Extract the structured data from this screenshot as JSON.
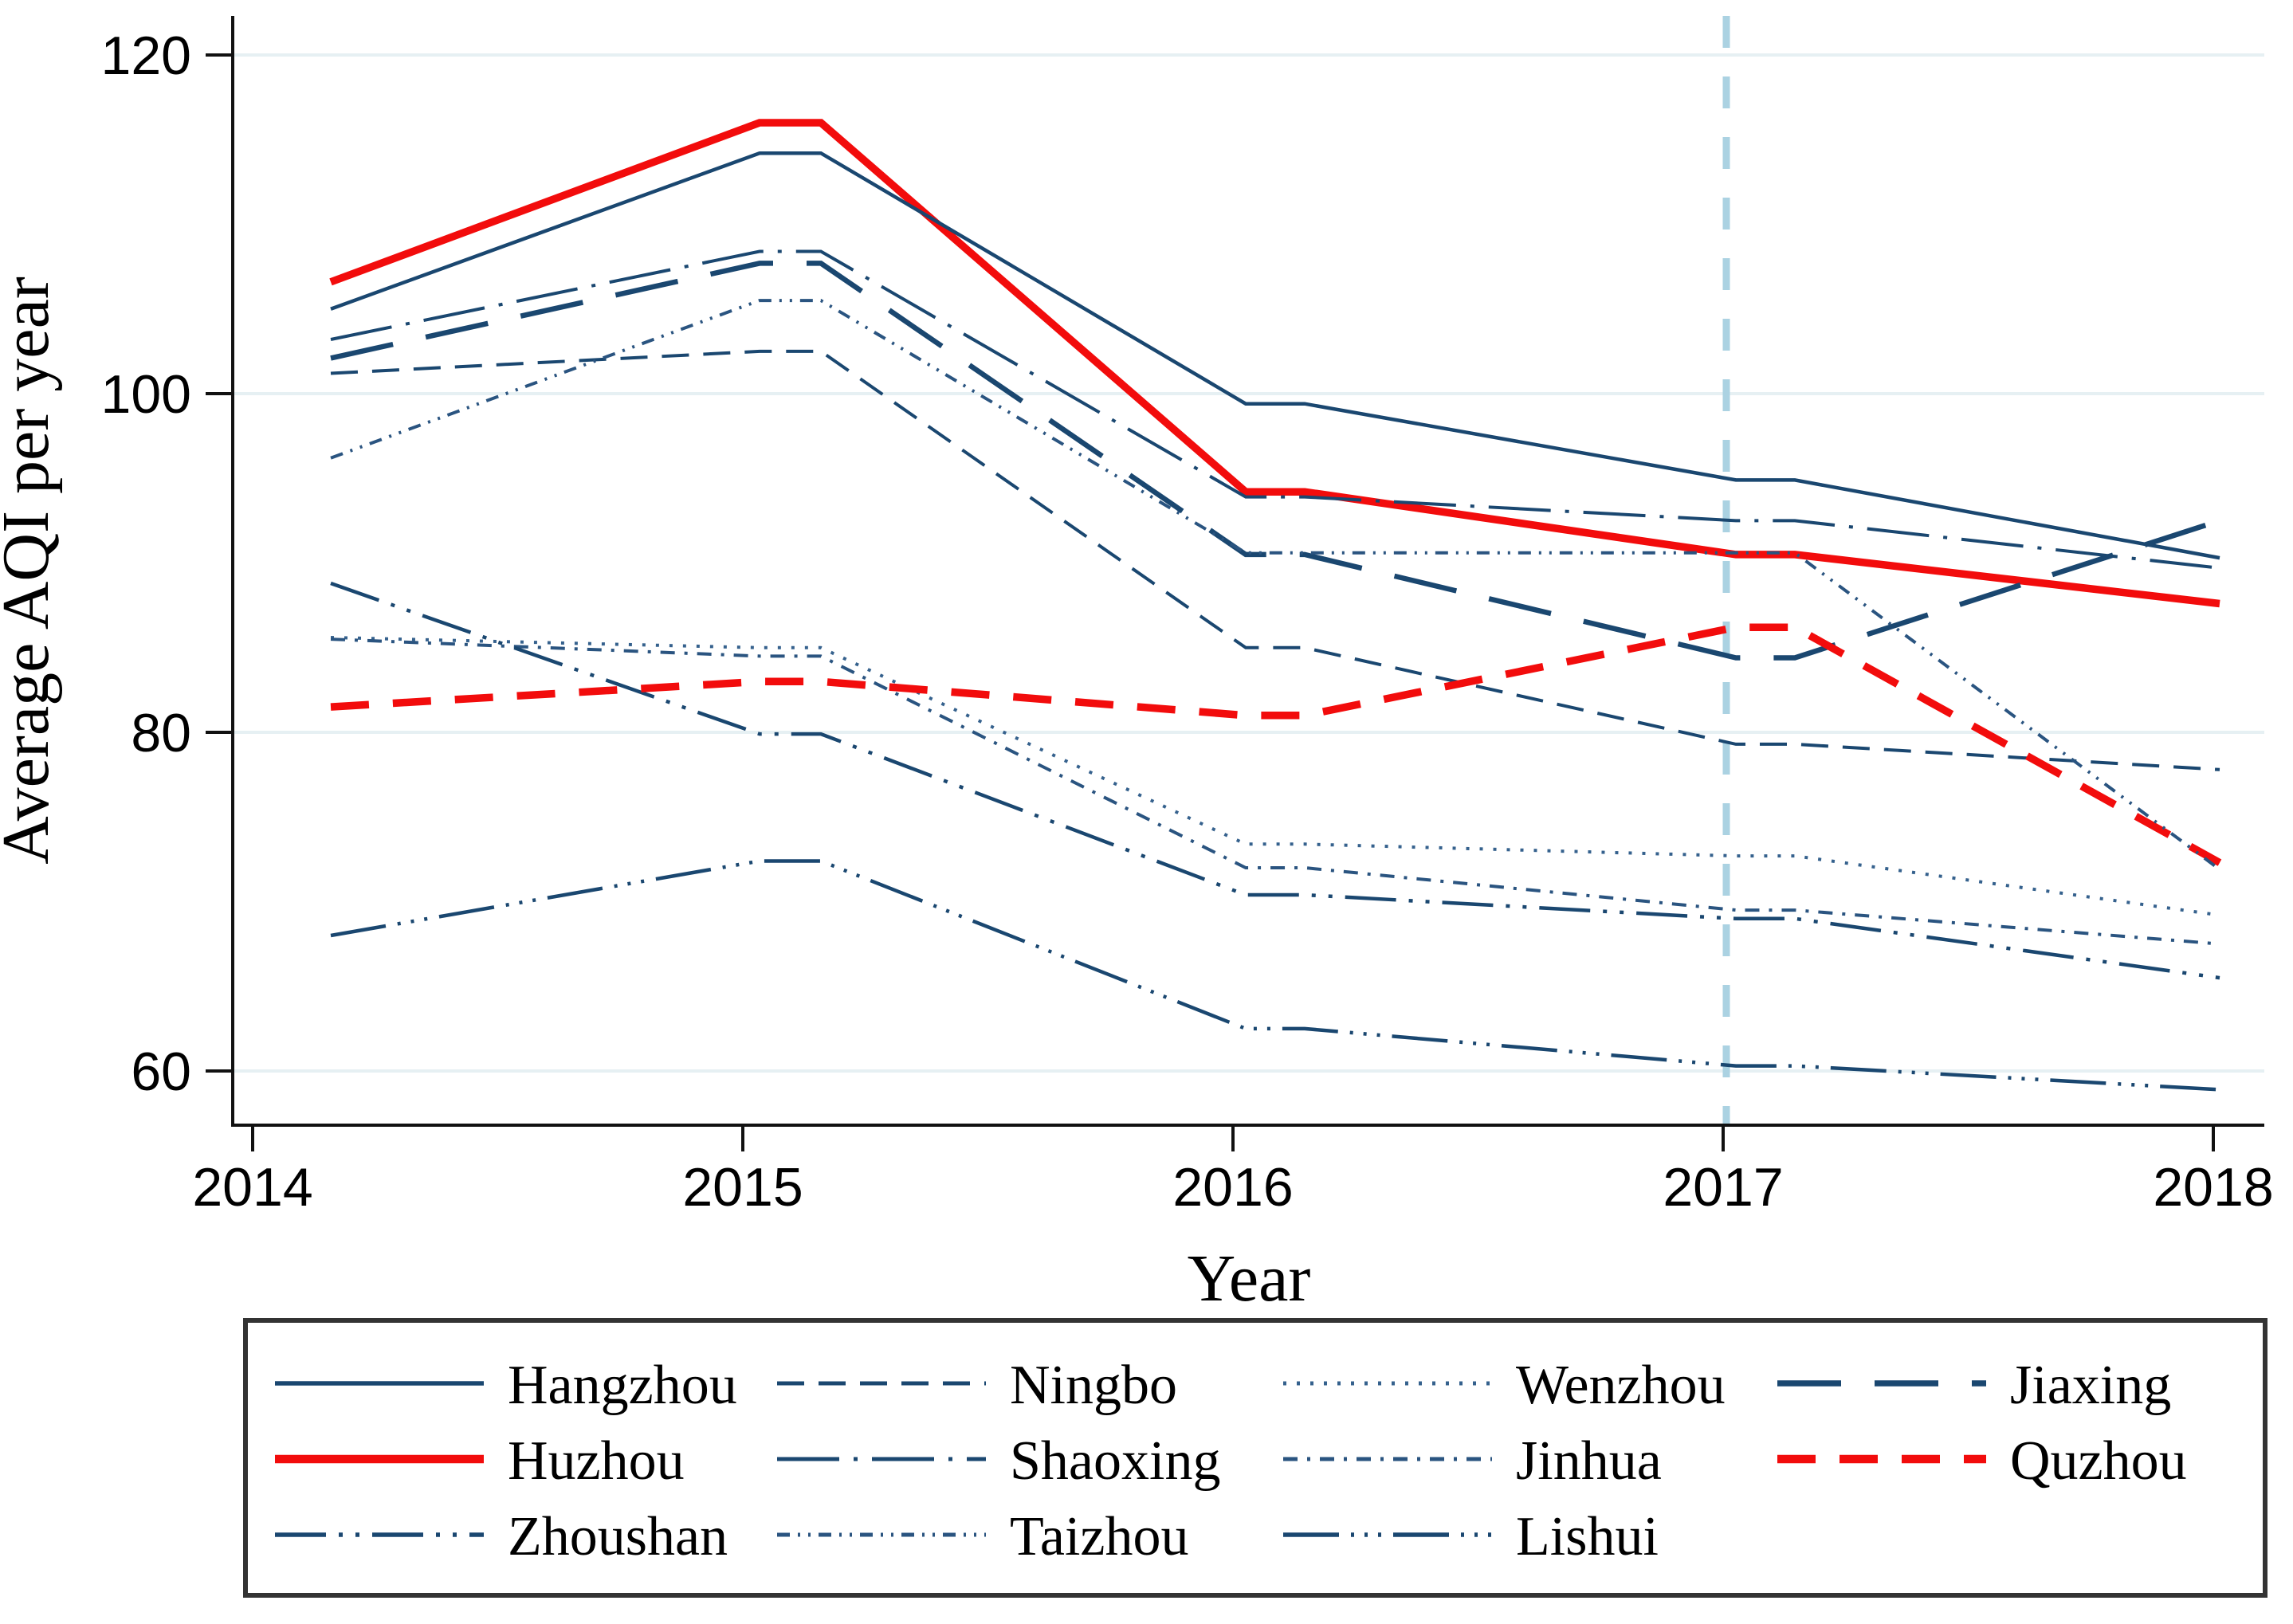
{
  "figure": {
    "y_axis_title": "Average AQI per year",
    "x_axis_title": "Year"
  },
  "chart_data": {
    "type": "line",
    "title": "",
    "xlabel": "Year",
    "ylabel": "Average AQI per year",
    "x": [
      2014,
      2015,
      2016,
      2017,
      2018
    ],
    "x_tick_labels": [
      "2014",
      "2015",
      "2016",
      "2017",
      "2018"
    ],
    "y_ticks": [
      60,
      80,
      100,
      120
    ],
    "ylim": [
      56.5,
      122.5
    ],
    "grid": "horizontal",
    "legend_position": "bottom-box",
    "annotations": [
      {
        "type": "vline",
        "x": 2017,
        "style": "dashed",
        "color": "#abd2e2"
      }
    ],
    "series": [
      {
        "name": "Hangzhou",
        "color": "#1a4770",
        "style": "solid",
        "width": 4.5,
        "values": [
          105.0,
          114.2,
          99.4,
          94.9,
          90.3
        ]
      },
      {
        "name": "Ningbo",
        "color": "#1a4770",
        "style": "dash",
        "width": 4.0,
        "values": [
          101.2,
          102.5,
          85.0,
          79.3,
          77.8
        ]
      },
      {
        "name": "Wenzhou",
        "color": "#35618d",
        "style": "dot",
        "width": 4.0,
        "values": [
          85.6,
          85.0,
          73.4,
          72.7,
          69.2
        ]
      },
      {
        "name": "Jiaxing",
        "color": "#1a4770",
        "style": "longdash",
        "width": 6.5,
        "values": [
          102.1,
          107.7,
          90.5,
          84.4,
          92.5
        ]
      },
      {
        "name": "Huzhou",
        "color": "#f20c0c",
        "style": "solid",
        "width": 9.5,
        "values": [
          106.6,
          116.0,
          94.2,
          90.5,
          87.6
        ]
      },
      {
        "name": "Shaoxing",
        "color": "#1a4770",
        "style": "dash-dot",
        "width": 4.0,
        "values": [
          103.2,
          108.4,
          93.9,
          92.5,
          89.7
        ]
      },
      {
        "name": "Jinhua",
        "color": "#2a5480",
        "style": "shortdash-dot",
        "width": 4.0,
        "values": [
          85.5,
          84.5,
          72.0,
          69.5,
          67.5
        ]
      },
      {
        "name": "Quzhou",
        "color": "#f20c0c",
        "style": "wide-dash",
        "width": 9.5,
        "values": [
          81.5,
          83.0,
          81.0,
          86.2,
          72.3
        ]
      },
      {
        "name": "Zhoushan",
        "color": "#1a4770",
        "style": "dash-dot-dot",
        "width": 4.5,
        "values": [
          88.8,
          79.9,
          70.4,
          69.0,
          65.5
        ]
      },
      {
        "name": "Taizhou",
        "color": "#2a5480",
        "style": "shortdash-dot-dot",
        "width": 4.0,
        "values": [
          96.2,
          105.5,
          90.6,
          90.6,
          71.9
        ]
      },
      {
        "name": "Lishui",
        "color": "#1a4770",
        "style": "dash-dot-dot-dot",
        "width": 4.5,
        "values": [
          68.0,
          72.4,
          62.5,
          60.3,
          58.9
        ]
      }
    ],
    "legend_rows": [
      [
        "Hangzhou",
        "Ningbo",
        "Wenzhou",
        "Jiaxing"
      ],
      [
        "Huzhou",
        "Shaoxing",
        "Jinhua",
        "Quzhou"
      ],
      [
        "Zhoushan",
        "Taizhou",
        "Lishui"
      ]
    ]
  }
}
